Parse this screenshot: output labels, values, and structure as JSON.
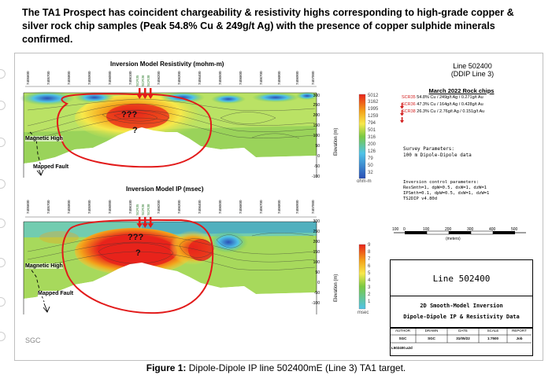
{
  "heading": "The TA1 Prospect has coincident chargeability & resistivity highs corresponding to high-grade copper & silver rock chip samples (Peak 54.8% Cu & 249g/t Ag) with the presence of copper sulphide minerals confirmed.",
  "footer_watermark": "SGC",
  "caption": {
    "prefix": "Figure 1:",
    "text": " Dipole-Dipole IP line 502400mE (Line 3) TA1 target."
  },
  "resistivity_panel": {
    "title": "Inversion Model Resistivity (mohm-m)",
    "annotation_unknown": "???",
    "annotation_q": "?",
    "magnetic_high": "Magnetic High",
    "mapped_fault": "Mapped Fault",
    "elevation_label": "Elevation (m)",
    "elevation_ticks": [
      "300",
      "250",
      "200",
      "150",
      "100",
      "50",
      "0",
      "-50",
      "-100"
    ],
    "legend_values": [
      "5012",
      "3162",
      "1995",
      "1259",
      "794",
      "501",
      "316",
      "200",
      "126",
      "79",
      "50",
      "32"
    ],
    "legend_unit": "ohm-m",
    "stations": [
      "7405600",
      "7405700",
      "7405800",
      "7405900",
      "7406000",
      "7406100",
      "7406200",
      "7406300",
      "7406400",
      "7406500",
      "7406600",
      "7406700",
      "7406800",
      "7406900",
      "7407000"
    ],
    "sample_codes": [
      "SCR35",
      "SCR36",
      "SCR38"
    ]
  },
  "ip_panel": {
    "title": "Inversion Model IP (msec)",
    "annotation_unknown": "???",
    "annotation_q": "?",
    "magnetic_high": "Magnetic High",
    "mapped_fault": "Mapped Fault",
    "elevation_label": "Elevation (m)",
    "elevation_ticks": [
      "300",
      "250",
      "200",
      "150",
      "100",
      "50",
      "0",
      "-50",
      "-100"
    ],
    "legend_values": [
      "9",
      "8",
      "7",
      "6",
      "5",
      "4",
      "3",
      "2",
      "1"
    ],
    "legend_unit": "msec",
    "stations": [
      "7405600",
      "7405700",
      "7405800",
      "7405900",
      "7406000",
      "7406100",
      "7406200",
      "7406300",
      "7406400",
      "7406500",
      "7406600",
      "7406700",
      "7406800",
      "7406900",
      "7407000"
    ],
    "sample_codes": [
      "SCR35",
      "SCR36",
      "SCR38"
    ]
  },
  "line_header": {
    "line1": "Line 502400",
    "line2": "(DDIP Line 3)"
  },
  "rock_chips": {
    "title": "March 2022 Rock chips",
    "rows": [
      {
        "code": "SCR35",
        "text": " 54.8% Cu / 249g/t Ag / 0.271g/t Au"
      },
      {
        "code": "SCR36",
        "text": " 47.3% Cu / 164g/t Ag / 0.428g/t Au"
      },
      {
        "code": "SCR38",
        "text": " 26.3% Cu / 2.76g/t Ag / 0.151g/t Au"
      }
    ]
  },
  "survey": {
    "line1": "Survey Parameters:",
    "line2": "100 m Dipole-Dipole data"
  },
  "control": {
    "line1": "Inversion control parameters:",
    "line2": "ResSmth=1, dpW=0.5, dxW=1, dzW=1",
    "line3": "IPSmth=0.1, dpW=0.5, dxW=1, dzW=1",
    "line4": "TS2DIP v4.80d"
  },
  "scale": {
    "ticks": [
      "100",
      "0",
      "100",
      "200",
      "300",
      "400",
      "500"
    ],
    "unit": "(meters)"
  },
  "title_block": {
    "line": "Line 502400",
    "inv1": "2D Smooth-Model Inversion",
    "inv2": "Dipole-Dipole IP & Resistivity Data",
    "headers": [
      "AUTHOR",
      "DRAWN",
      "DATE",
      "SCALE",
      "REPORT"
    ],
    "values": [
      "SGC",
      "SGC",
      "31/05/22",
      "1:7500",
      "Job"
    ],
    "file": "L502400.a2d"
  },
  "colors": {
    "red": "#e8231b",
    "orange": "#f4a21a",
    "yellow": "#f7e84a",
    "green": "#7ac943",
    "cyan": "#4fc3e8",
    "blue": "#2a4fb5",
    "annot_red": "#e21a1a"
  }
}
